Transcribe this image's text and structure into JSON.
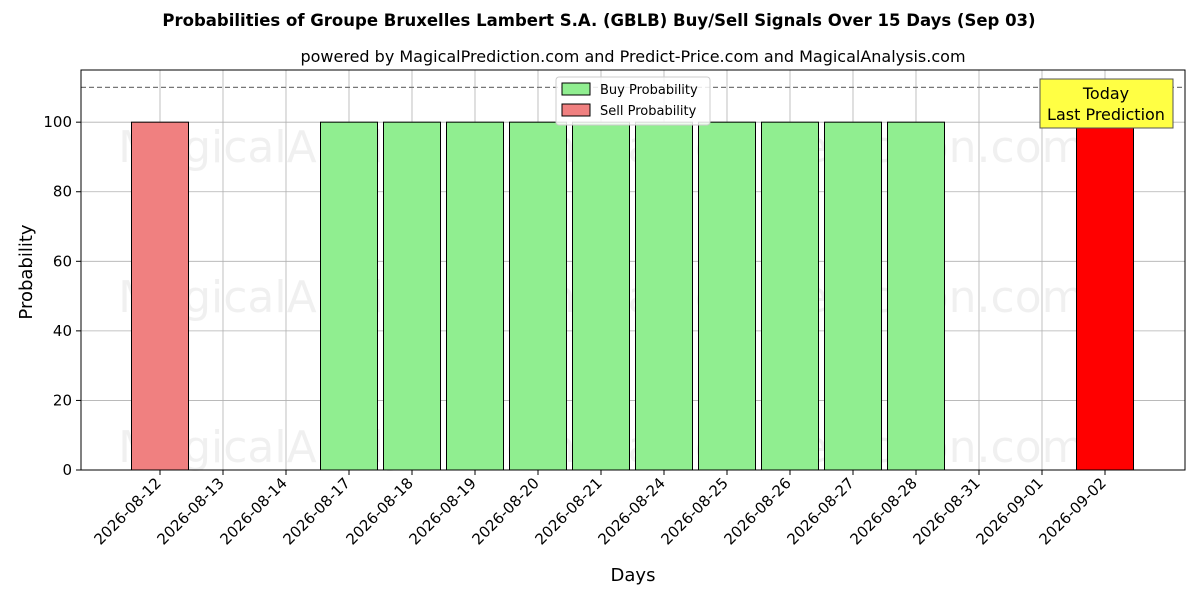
{
  "chart_data": {
    "type": "bar",
    "title": "Probabilities of Groupe Bruxelles Lambert S.A. (GBLB) Buy/Sell Signals Over 15 Days (Sep 03)",
    "subtitle": "powered by MagicalPrediction.com and Predict-Price.com and MagicalAnalysis.com",
    "xlabel": "Days",
    "ylabel": "Probability",
    "ylim": [
      0,
      115
    ],
    "yticks": [
      0,
      20,
      40,
      60,
      80,
      100
    ],
    "reference_line": 110,
    "grid": true,
    "legend_position": "top-center",
    "categories": [
      "2026-08-12",
      "2026-08-13",
      "2026-08-14",
      "2026-08-17",
      "2026-08-18",
      "2026-08-19",
      "2026-08-20",
      "2026-08-21",
      "2026-08-24",
      "2026-08-25",
      "2026-08-26",
      "2026-08-27",
      "2026-08-28",
      "2026-08-31",
      "2026-09-01",
      "2026-09-02"
    ],
    "series": [
      {
        "name": "Buy Probability",
        "color": "#90ee90",
        "values": [
          0,
          0,
          0,
          100,
          100,
          100,
          100,
          100,
          100,
          100,
          100,
          100,
          100,
          0,
          0,
          0
        ]
      },
      {
        "name": "Sell Probability",
        "color": "#f08080",
        "values": [
          100,
          0,
          0,
          0,
          0,
          0,
          0,
          0,
          0,
          0,
          0,
          0,
          0,
          0,
          0,
          100
        ]
      }
    ],
    "highlight": {
      "category": "2026-09-02",
      "color": "#ff0000"
    },
    "annotation": {
      "lines": [
        "Today",
        "Last Prediction"
      ],
      "background": "#ffff44"
    },
    "watermarks": [
      "MagicalAnalysis.com",
      "MagicalPrediction.com"
    ]
  }
}
